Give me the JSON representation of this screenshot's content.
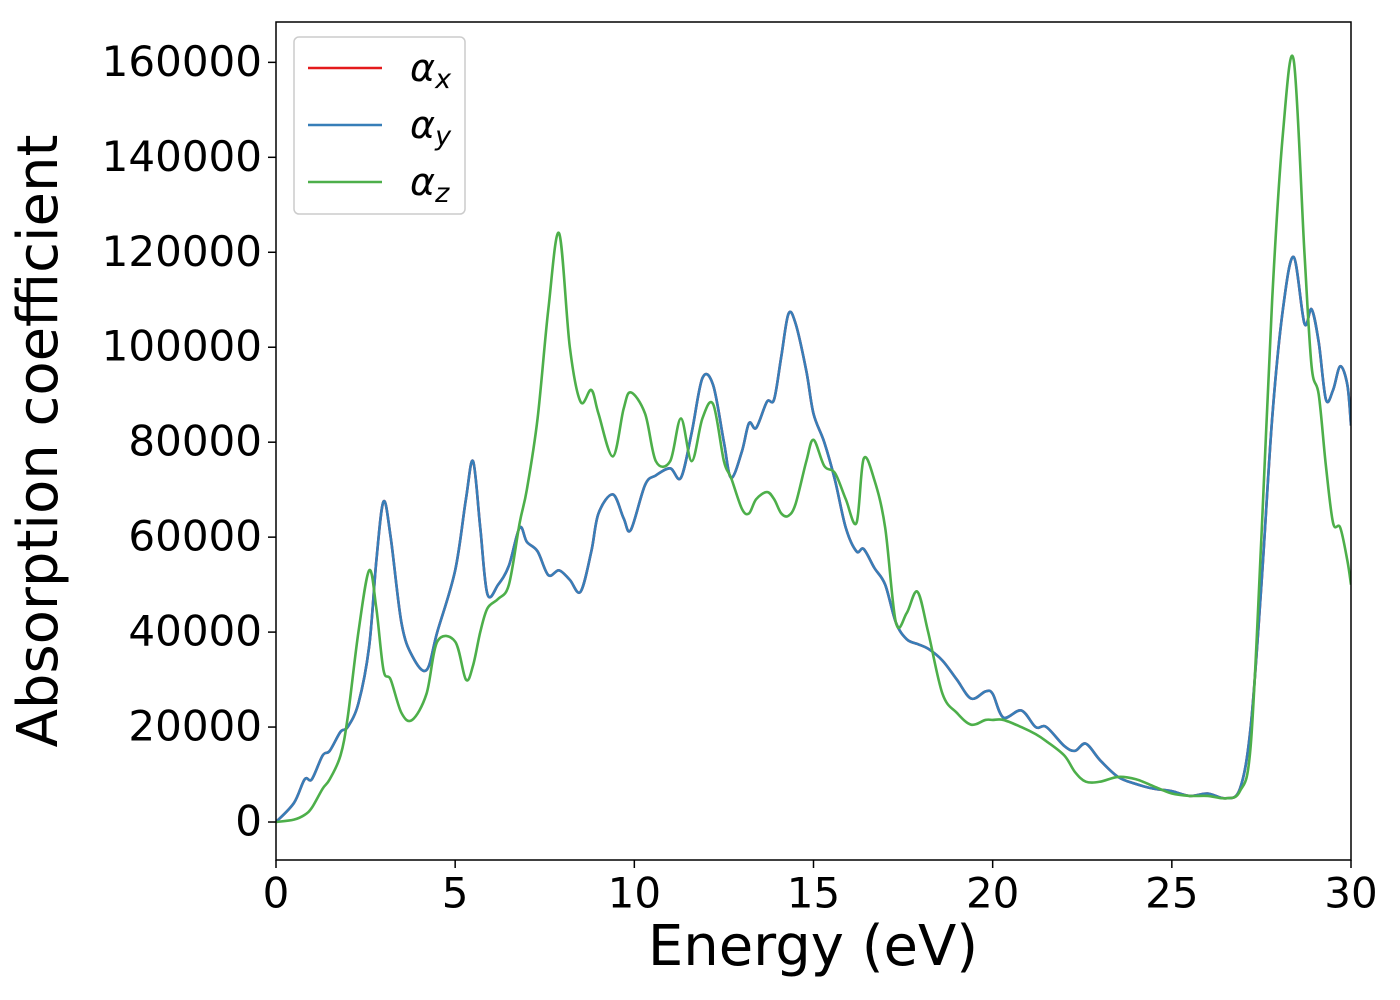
{
  "chart_data": {
    "type": "line",
    "xlabel": "Energy (eV)",
    "ylabel": "Absorption coefficient",
    "x": [
      0,
      0.5,
      0.8,
      1.0,
      1.3,
      1.5,
      1.8,
      2.0,
      2.3,
      2.6,
      2.8,
      3.0,
      3.2,
      3.5,
      3.8,
      4.2,
      4.5,
      5.0,
      5.3,
      5.5,
      5.7,
      5.9,
      6.2,
      6.5,
      6.8,
      7.0,
      7.3,
      7.6,
      7.9,
      8.2,
      8.5,
      8.8,
      9.0,
      9.4,
      9.7,
      9.9,
      10.3,
      10.6,
      11.0,
      11.3,
      11.6,
      11.9,
      12.2,
      12.5,
      12.7,
      13.0,
      13.2,
      13.4,
      13.7,
      13.9,
      14.1,
      14.3,
      14.5,
      14.8,
      15.0,
      15.3,
      15.6,
      15.9,
      16.2,
      16.4,
      16.7,
      17.0,
      17.3,
      17.6,
      17.9,
      18.2,
      18.6,
      19.0,
      19.4,
      19.8,
      20.0,
      20.3,
      20.8,
      21.2,
      21.5,
      22.0,
      22.3,
      22.6,
      23.0,
      23.5,
      24.0,
      24.5,
      25.0,
      25.5,
      26.0,
      26.5,
      26.9,
      27.2,
      27.5,
      27.8,
      28.1,
      28.4,
      28.7,
      28.9,
      29.1,
      29.3,
      29.5,
      29.7,
      29.9,
      30.0
    ],
    "series": [
      {
        "name": "αx",
        "color": "#e41a1c",
        "values": [
          0,
          4000,
          9000,
          9000,
          14000,
          15000,
          19000,
          20000,
          25000,
          37000,
          55000,
          67500,
          60000,
          42000,
          35000,
          32000,
          40000,
          53000,
          68000,
          76000,
          62000,
          48000,
          50000,
          54000,
          62000,
          59000,
          57000,
          52000,
          53000,
          51000,
          48500,
          57000,
          65000,
          69000,
          64000,
          61500,
          71000,
          73000,
          74500,
          72500,
          82000,
          93500,
          92000,
          80000,
          72500,
          78000,
          84000,
          83000,
          88500,
          89000,
          98000,
          107000,
          105000,
          95000,
          86000,
          80000,
          72000,
          62000,
          57000,
          57500,
          53500,
          50000,
          42000,
          38500,
          37500,
          36500,
          34000,
          30000,
          26000,
          27500,
          27000,
          22000,
          23500,
          20000,
          20000,
          16000,
          15000,
          16500,
          13000,
          9500,
          8000,
          7000,
          6500,
          5500,
          6000,
          5000,
          7000,
          20000,
          50000,
          85000,
          108000,
          119000,
          105000,
          108000,
          101000,
          89000,
          91000,
          96000,
          92000,
          83500
        ]
      },
      {
        "name": "αy",
        "color": "#377eb8",
        "values": [
          0,
          4000,
          9000,
          9000,
          14000,
          15000,
          19000,
          20000,
          25000,
          37000,
          55000,
          67500,
          60000,
          42000,
          35000,
          32000,
          40000,
          53000,
          68000,
          76000,
          62000,
          48000,
          50000,
          54000,
          62000,
          59000,
          57000,
          52000,
          53000,
          51000,
          48500,
          57000,
          65000,
          69000,
          64000,
          61500,
          71000,
          73000,
          74500,
          72500,
          82000,
          93500,
          92000,
          80000,
          72500,
          78000,
          84000,
          83000,
          88500,
          89000,
          98000,
          107000,
          105000,
          95000,
          86000,
          80000,
          72000,
          62000,
          57000,
          57500,
          53500,
          50000,
          42000,
          38500,
          37500,
          36500,
          34000,
          30000,
          26000,
          27500,
          27000,
          22000,
          23500,
          20000,
          20000,
          16000,
          15000,
          16500,
          13000,
          9500,
          8000,
          7000,
          6500,
          5500,
          6000,
          5000,
          7000,
          20000,
          50000,
          85000,
          108000,
          119000,
          105000,
          108000,
          101000,
          89000,
          91000,
          96000,
          92000,
          83500
        ]
      },
      {
        "name": "αz",
        "color": "#4daf4a",
        "values": [
          0,
          500,
          1500,
          3000,
          7000,
          9000,
          14000,
          22000,
          40000,
          53000,
          45000,
          32000,
          30000,
          23000,
          21500,
          27000,
          38000,
          38000,
          30000,
          33000,
          40000,
          45000,
          47000,
          50000,
          63000,
          70000,
          85000,
          108000,
          124000,
          100000,
          88500,
          91000,
          86000,
          77000,
          87000,
          90500,
          86000,
          76000,
          76000,
          85000,
          76000,
          85000,
          88000,
          76000,
          72500,
          66000,
          65000,
          68000,
          69500,
          68000,
          65000,
          64500,
          67000,
          76000,
          80500,
          75000,
          73500,
          68000,
          63000,
          76500,
          72000,
          62000,
          42000,
          44000,
          48500,
          40000,
          27000,
          23000,
          20500,
          21500,
          21500,
          21500,
          20000,
          18500,
          17000,
          14000,
          10500,
          8500,
          8500,
          9500,
          9000,
          7500,
          6000,
          5500,
          5500,
          5000,
          6500,
          16000,
          60000,
          110000,
          145000,
          160500,
          120000,
          96000,
          90000,
          75000,
          63000,
          62000,
          55000,
          50000
        ]
      }
    ],
    "xlim": [
      0,
      30
    ],
    "xticks": [
      0,
      5,
      10,
      15,
      20,
      25,
      30
    ],
    "ylim": [
      -8000,
      168500
    ],
    "yticks": [
      0,
      20000,
      40000,
      60000,
      80000,
      100000,
      120000,
      140000,
      160000
    ],
    "legend": "upper left"
  }
}
